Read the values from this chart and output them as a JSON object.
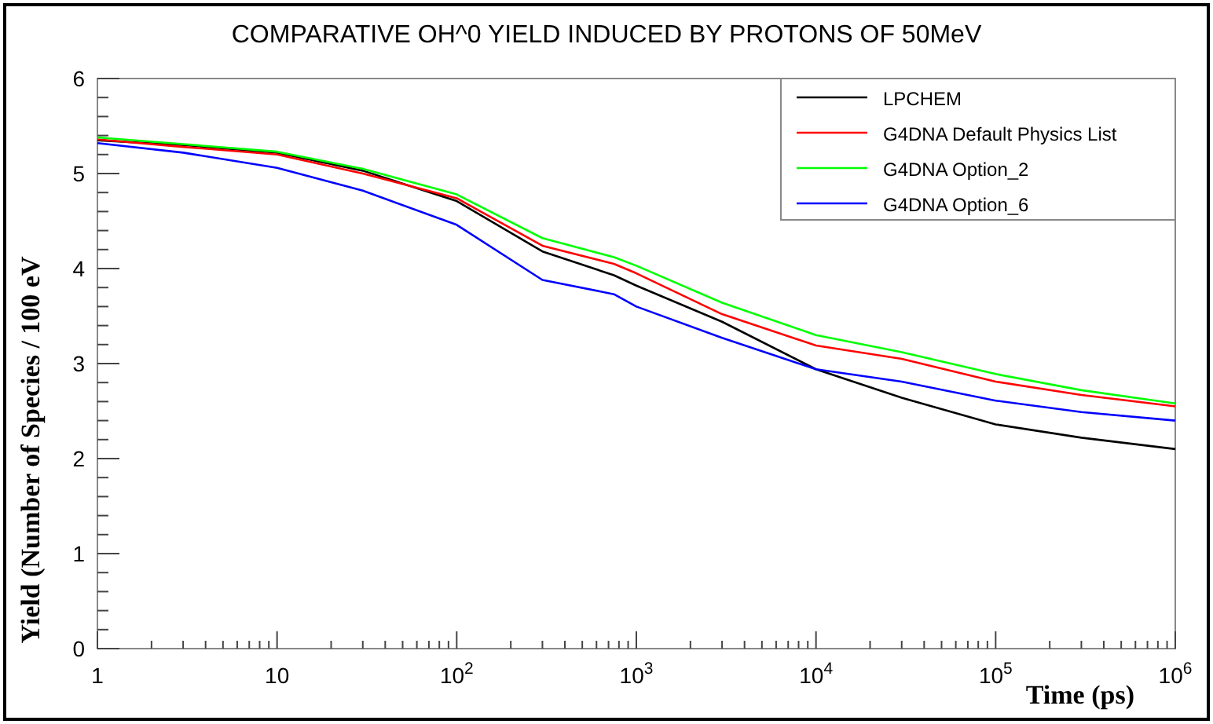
{
  "chart_data": {
    "type": "line",
    "title": "COMPARATIVE OH^0 YIELD INDUCED BY PROTONS OF 50MeV",
    "xlabel": "Time (ps)",
    "ylabel": "Yield (Number of Species / 100 eV",
    "log": "x",
    "legend": "top right",
    "grid": false,
    "line_style": "solid",
    "marker": "none",
    "x": [
      1,
      3,
      10,
      30,
      100,
      300,
      750,
      1000,
      3000,
      10000,
      30000,
      100000,
      300000,
      1000000
    ],
    "xlim": [
      1,
      1000000
    ],
    "xticks": [
      1,
      10,
      {
        "value": 100,
        "label": "10$^{2}$"
      },
      {
        "value": 1000,
        "label": "10$^{3}$"
      },
      {
        "value": 10000,
        "label": "10$^{4}$"
      },
      {
        "value": 100000,
        "label": "10$^{5}$"
      },
      {
        "value": 1000000,
        "label": "10$^{6}$"
      }
    ],
    "ylim": [
      0,
      6
    ],
    "yticks": [
      0,
      1,
      2,
      3,
      4,
      5,
      6
    ],
    "series": [
      {
        "name": "LPCHEM",
        "color": "#000000",
        "values": [
          5.35,
          5.3,
          5.22,
          5.03,
          4.71,
          4.18,
          3.93,
          3.82,
          3.44,
          2.94,
          2.64,
          2.36,
          2.22,
          2.1
        ]
      },
      {
        "name": "G4DNA Default Physics List",
        "color": "#ff0000",
        "values": [
          5.36,
          5.28,
          5.2,
          5.0,
          4.74,
          4.24,
          4.05,
          3.95,
          3.52,
          3.19,
          3.05,
          2.81,
          2.67,
          2.55
        ]
      },
      {
        "name": "G4DNA Option_2",
        "color": "#00ff00",
        "values": [
          5.38,
          5.31,
          5.23,
          5.05,
          4.78,
          4.32,
          4.12,
          4.03,
          3.64,
          3.3,
          3.12,
          2.89,
          2.72,
          2.58
        ]
      },
      {
        "name": "G4DNA Option_6",
        "color": "#0000ff",
        "values": [
          5.32,
          5.22,
          5.06,
          4.82,
          4.46,
          3.88,
          3.73,
          3.6,
          3.27,
          2.94,
          2.81,
          2.61,
          2.49,
          2.4
        ]
      }
    ]
  }
}
